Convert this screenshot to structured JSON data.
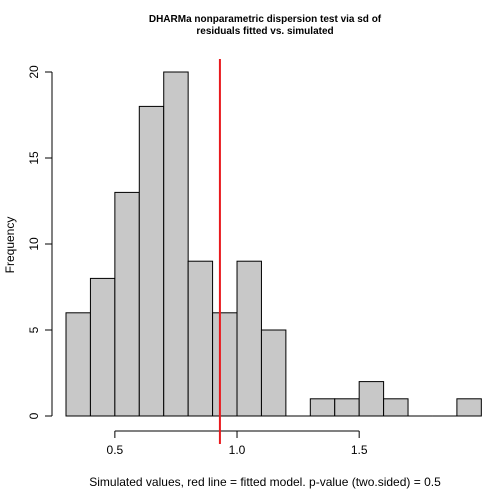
{
  "chart_data": {
    "type": "bar",
    "title_lines": [
      "DHARMa nonparametric dispersion test via sd of",
      "residuals fitted vs. simulated"
    ],
    "xlabel": "Simulated values, red line = fitted model. p-value (two.sided) = 0.5",
    "ylabel": "Frequency",
    "bin_edges": [
      0.3,
      0.4,
      0.5,
      0.6,
      0.7,
      0.8,
      0.9,
      1.0,
      1.1,
      1.2,
      1.3,
      1.4,
      1.5,
      1.6,
      1.7,
      1.8,
      1.9,
      2.0
    ],
    "values": [
      6,
      8,
      13,
      18,
      20,
      9,
      6,
      9,
      5,
      0,
      1,
      1,
      2,
      1,
      0,
      0,
      1
    ],
    "xlim": [
      0.3,
      1.97
    ],
    "ylim": [
      0,
      20
    ],
    "x_ticks": [
      0.5,
      1.0,
      1.5
    ],
    "x_tick_labels": [
      "0.5",
      "1.0",
      "1.5"
    ],
    "y_ticks": [
      0,
      5,
      10,
      15,
      20
    ],
    "y_tick_labels": [
      "0",
      "5",
      "10",
      "15",
      "20"
    ],
    "reference_line": {
      "x": 0.93,
      "color": "#e8191d"
    },
    "bar_color": "#c8c8c8"
  }
}
